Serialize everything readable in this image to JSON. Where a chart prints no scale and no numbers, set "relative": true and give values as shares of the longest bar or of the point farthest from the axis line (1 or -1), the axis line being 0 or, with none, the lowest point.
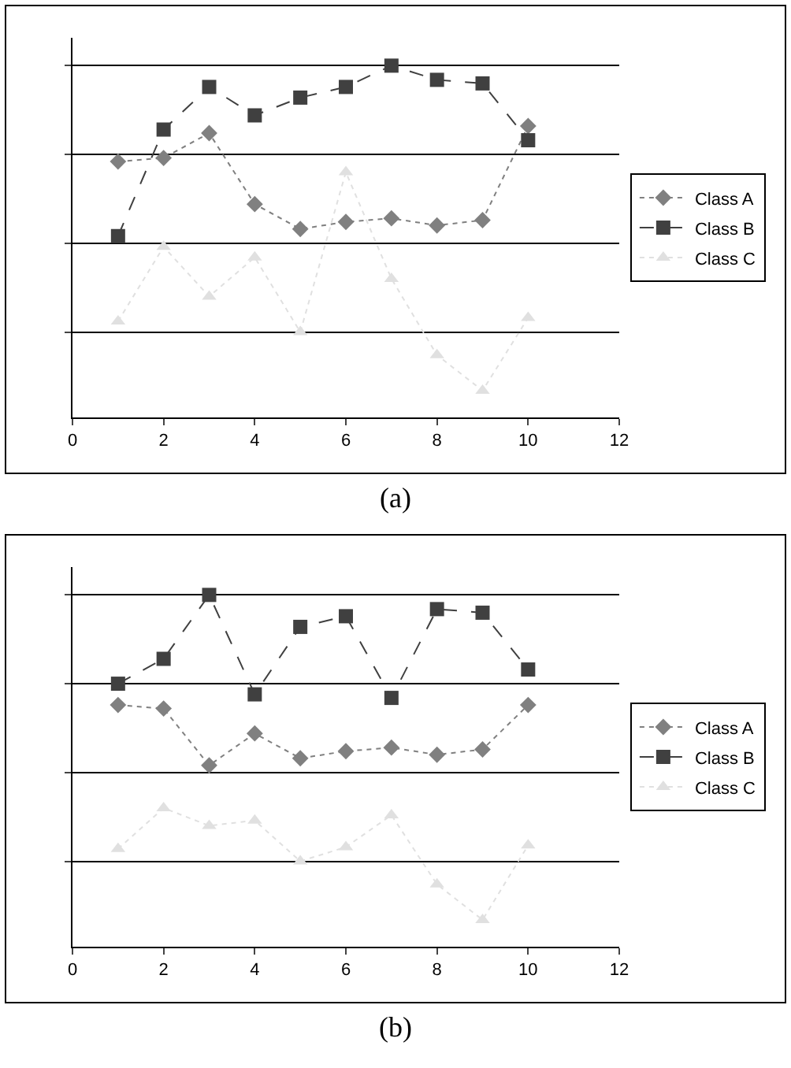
{
  "chart_data": [
    {
      "type": "line",
      "title": "(a)",
      "relative": true,
      "x": [
        1,
        2,
        3,
        4,
        5,
        6,
        7,
        8,
        9,
        10
      ],
      "xlim": [
        0,
        12
      ],
      "xticks": [
        0,
        2,
        4,
        6,
        8,
        10,
        12
      ],
      "grid": "y",
      "legend": "right",
      "series": [
        {
          "name": "Class A",
          "color": "#808080",
          "marker": "diamond",
          "line_style": "dotted",
          "values": [
            0.46,
            0.48,
            0.62,
            0.22,
            0.08,
            0.12,
            0.14,
            0.1,
            0.13,
            0.66
          ]
        },
        {
          "name": "Class B",
          "color": "#404040",
          "marker": "square",
          "line_style": "dashed",
          "values": [
            0.04,
            0.64,
            0.88,
            0.72,
            0.82,
            0.88,
            1,
            0.92,
            0.9,
            0.58
          ]
        },
        {
          "name": "Class C",
          "color": "#e0e0e0",
          "marker": "triangle",
          "line_style": "dotted",
          "values": [
            -0.44,
            -0.02,
            -0.3,
            -0.08,
            -0.5,
            0.4,
            -0.2,
            -0.63,
            -0.83,
            -0.42
          ]
        }
      ]
    },
    {
      "type": "line",
      "title": "(b)",
      "relative": true,
      "x": [
        1,
        2,
        3,
        4,
        5,
        6,
        7,
        8,
        9,
        10
      ],
      "xlim": [
        0,
        12
      ],
      "xticks": [
        0,
        2,
        4,
        6,
        8,
        10,
        12
      ],
      "grid": "y",
      "legend": "right",
      "series": [
        {
          "name": "Class A",
          "color": "#808080",
          "marker": "diamond",
          "line_style": "dotted",
          "values": [
            0.38,
            0.36,
            0.04,
            0.22,
            0.08,
            0.12,
            0.14,
            0.1,
            0.13,
            0.38
          ]
        },
        {
          "name": "Class B",
          "color": "#404040",
          "marker": "square",
          "line_style": "dashed",
          "values": [
            0.5,
            0.64,
            1,
            0.44,
            0.82,
            0.88,
            0.42,
            0.92,
            0.9,
            0.58
          ]
        },
        {
          "name": "Class C",
          "color": "#e0e0e0",
          "marker": "triangle",
          "line_style": "dotted",
          "values": [
            -0.43,
            -0.2,
            -0.3,
            -0.27,
            -0.5,
            -0.42,
            -0.24,
            -0.63,
            -0.83,
            -0.41
          ]
        }
      ]
    }
  ]
}
